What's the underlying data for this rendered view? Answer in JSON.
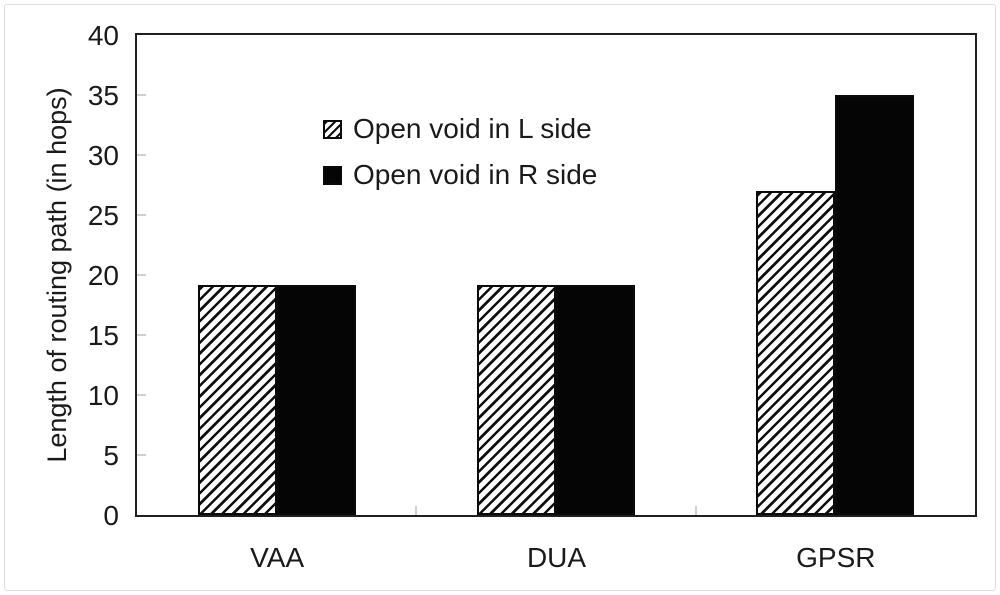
{
  "chart_data": {
    "type": "bar",
    "title": "",
    "categories": [
      "VAA",
      "DUA",
      "GPSR"
    ],
    "series": [
      {
        "name": "Open void in L side",
        "style": "hatched",
        "values": [
          19.2,
          19.2,
          27
        ]
      },
      {
        "name": "Open void in R side",
        "style": "solid",
        "values": [
          19.2,
          19.2,
          35
        ]
      }
    ],
    "xlabel": "",
    "ylabel": "Length of routing path (in hops)",
    "ylim": [
      0,
      40
    ],
    "yticks": [
      0,
      5,
      10,
      15,
      20,
      25,
      30,
      35,
      40
    ],
    "grid": false,
    "legend_position": "top-left-inside",
    "hatch_direction": "forward-diagonal"
  },
  "colors": {
    "bar_solid": "#050505",
    "axis": "#1f1f1f",
    "minor_tick": "#cfcfcf",
    "text": "#1a1a1a",
    "figure_border": "#dedede",
    "background": "#ffffff"
  }
}
